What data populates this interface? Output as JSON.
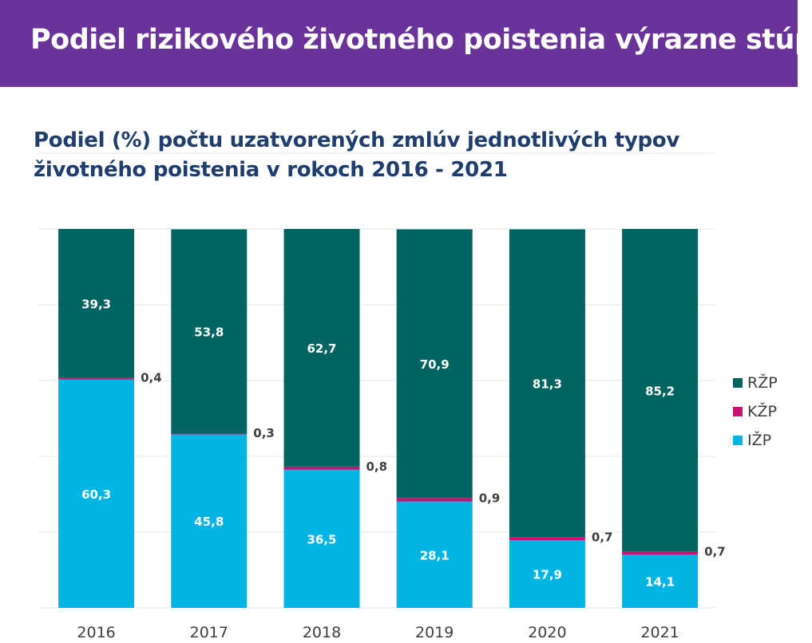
{
  "header": {
    "title": "Podiel rizikového životného poistenia výrazne stúpa",
    "subtitle_line1": "Podiel (%) počtu uzatvorených zmlúv jednotlivých typov",
    "subtitle_line2": "životného poistenia v rokoch 2016 - 2021"
  },
  "chart_data": {
    "type": "bar",
    "stacked": true,
    "categories": [
      "2016",
      "2017",
      "2018",
      "2019",
      "2020",
      "2021"
    ],
    "series": [
      {
        "name": "IŽP",
        "color": "#00b4e4",
        "values": [
          60.3,
          45.8,
          36.5,
          28.1,
          17.9,
          14.1
        ],
        "labels": [
          "60,3",
          "45,8",
          "36,5",
          "28,1",
          "17,9",
          "14,1"
        ]
      },
      {
        "name": "KŽP",
        "color": "#c8106e",
        "values": [
          0.4,
          0.3,
          0.8,
          0.9,
          0.7,
          0.7
        ],
        "labels": [
          "0,4",
          "0,3",
          "0,8",
          "0,9",
          "0,7",
          "0,7"
        ]
      },
      {
        "name": "RŽP",
        "color": "#006461",
        "values": [
          39.3,
          53.8,
          62.7,
          70.9,
          81.3,
          85.2
        ],
        "labels": [
          "39,3",
          "53,8",
          "62,7",
          "70,9",
          "81,3",
          "85,2"
        ]
      }
    ],
    "legend_order": [
      "RŽP",
      "KŽP",
      "IŽP"
    ],
    "legend_position": "right",
    "ylim": [
      0,
      120
    ],
    "y_axis_visible": false,
    "grid": true,
    "gridline_color": "#e4e4e4"
  }
}
